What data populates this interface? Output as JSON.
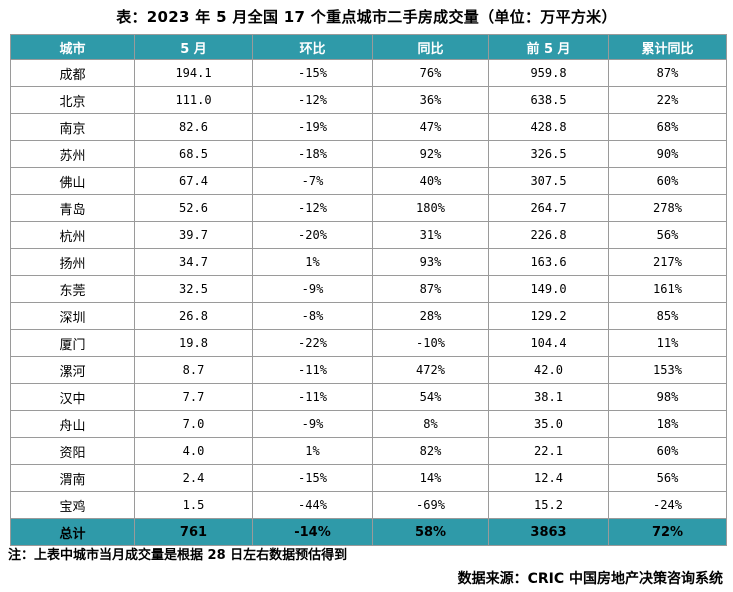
{
  "title": "表：2023 年 5 月全国 17 个重点城市二手房成交量（单位：万平方米）",
  "table": {
    "headers": [
      "城市",
      "5 月",
      "环比",
      "同比",
      "前 5 月",
      "累计同比"
    ],
    "rows": [
      [
        "成都",
        "194.1",
        "-15%",
        "76%",
        "959.8",
        "87%"
      ],
      [
        "北京",
        "111.0",
        "-12%",
        "36%",
        "638.5",
        "22%"
      ],
      [
        "南京",
        "82.6",
        "-19%",
        "47%",
        "428.8",
        "68%"
      ],
      [
        "苏州",
        "68.5",
        "-18%",
        "92%",
        "326.5",
        "90%"
      ],
      [
        "佛山",
        "67.4",
        "-7%",
        "40%",
        "307.5",
        "60%"
      ],
      [
        "青岛",
        "52.6",
        "-12%",
        "180%",
        "264.7",
        "278%"
      ],
      [
        "杭州",
        "39.7",
        "-20%",
        "31%",
        "226.8",
        "56%"
      ],
      [
        "扬州",
        "34.7",
        "1%",
        "93%",
        "163.6",
        "217%"
      ],
      [
        "东莞",
        "32.5",
        "-9%",
        "87%",
        "149.0",
        "161%"
      ],
      [
        "深圳",
        "26.8",
        "-8%",
        "28%",
        "129.2",
        "85%"
      ],
      [
        "厦门",
        "19.8",
        "-22%",
        "-10%",
        "104.4",
        "11%"
      ],
      [
        "漯河",
        "8.7",
        "-11%",
        "472%",
        "42.0",
        "153%"
      ],
      [
        "汉中",
        "7.7",
        "-11%",
        "54%",
        "38.1",
        "98%"
      ],
      [
        "舟山",
        "7.0",
        "-9%",
        "8%",
        "35.0",
        "18%"
      ],
      [
        "资阳",
        "4.0",
        "1%",
        "82%",
        "22.1",
        "60%"
      ],
      [
        "渭南",
        "2.4",
        "-15%",
        "14%",
        "12.4",
        "56%"
      ],
      [
        "宝鸡",
        "1.5",
        "-44%",
        "-69%",
        "15.2",
        "-24%"
      ]
    ],
    "total": [
      "总计",
      "761",
      "-14%",
      "58%",
      "3863",
      "72%"
    ]
  },
  "note": "注：上表中城市当月成交量是根据 28 日左右数据预估得到",
  "source": "数据来源：CRIC 中国房地产决策咨询系统",
  "colors": {
    "header_bg": "#2f9aa9",
    "header_text": "#ffffff",
    "border": "#9a9a9a"
  }
}
